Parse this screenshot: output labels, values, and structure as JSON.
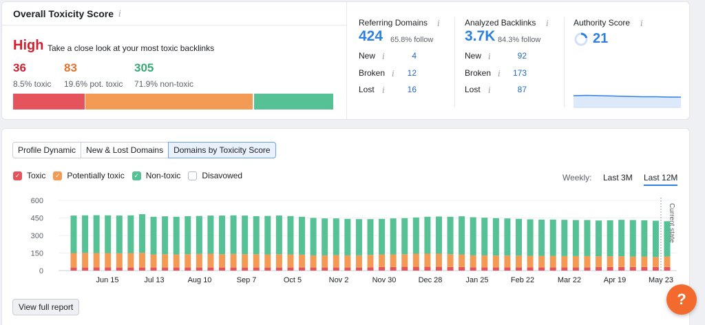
{
  "toxicity": {
    "title": "Overall Toxicity Score",
    "info": "i",
    "level": "High",
    "description": "Take a close look at your most toxic backlinks",
    "counts": [
      {
        "value": "36",
        "label": "8.5% toxic",
        "color": "#d21e2e"
      },
      {
        "value": "83",
        "label": "19.6% pot. toxic",
        "color": "#e8702b"
      },
      {
        "value": "305",
        "label": "71.9% non-toxic",
        "color": "#3aa876"
      }
    ],
    "bar": [
      {
        "name": "toxic",
        "fraction": 0.225,
        "color": "#e5545c"
      },
      {
        "name": "potentially-toxic",
        "fraction": 0.525,
        "color": "#f39a55"
      },
      {
        "name": "non-toxic",
        "fraction": 0.25,
        "color": "#55c194"
      }
    ]
  },
  "referring": {
    "title": "Referring Domains",
    "info": "i",
    "value": "424",
    "follow": "65.8% follow",
    "rows": [
      {
        "label": "New",
        "value": "4"
      },
      {
        "label": "Broken",
        "value": "12"
      },
      {
        "label": "Lost",
        "value": "16"
      }
    ]
  },
  "backlinks": {
    "title": "Analyzed Backlinks",
    "info": "i",
    "value": "3.7K",
    "follow": "84.3% follow",
    "rows": [
      {
        "label": "New",
        "value": "92"
      },
      {
        "label": "Broken",
        "value": "173"
      },
      {
        "label": "Lost",
        "value": "87"
      }
    ]
  },
  "authority": {
    "title": "Authority Score",
    "info": "i",
    "value": "21",
    "progress": 0.21
  },
  "tabs": [
    "Profile Dynamic",
    "New & Lost Domains",
    "Domains by Toxicity Score"
  ],
  "legend": [
    {
      "label": "Toxic",
      "color": "#e5545c",
      "checked": true
    },
    {
      "label": "Potentially toxic",
      "color": "#f39a55",
      "checked": true
    },
    {
      "label": "Non-toxic",
      "color": "#55c194",
      "checked": true
    },
    {
      "label": "Disavowed",
      "color": "#ffffff",
      "checked": false
    }
  ],
  "period": {
    "label": "Weekly:",
    "options": [
      "Last 3M",
      "Last 12M"
    ],
    "selected": "Last 12M"
  },
  "view_report": "View full report",
  "help": "?",
  "chart_data": {
    "type": "bar",
    "stacked": true,
    "yticks": [
      0,
      150,
      300,
      450,
      600
    ],
    "ylim": [
      0,
      600
    ],
    "xticklabels": [
      "Jun 15",
      "Jul 13",
      "Aug 10",
      "Sep 7",
      "Oct 5",
      "Nov 2",
      "Nov 30",
      "Dec 28",
      "Jan 25",
      "Feb 22",
      "Mar 22",
      "Apr 19",
      "May 23"
    ],
    "annotation": "Current state",
    "series": [
      {
        "name": "Toxic",
        "color": "#e5545c",
        "values": [
          26,
          26,
          27,
          27,
          26,
          26,
          26,
          26,
          26,
          26,
          26,
          26,
          26,
          26,
          26,
          26,
          26,
          26,
          26,
          26,
          26,
          26,
          26,
          26,
          26,
          26,
          28,
          30,
          30,
          32,
          32,
          32,
          32,
          30,
          30,
          28,
          28,
          28,
          28,
          28,
          28,
          28,
          28,
          28,
          28,
          28,
          30,
          30,
          30,
          30,
          30,
          30,
          30
        ]
      },
      {
        "name": "Potentially toxic",
        "color": "#f39a55",
        "values": [
          124,
          126,
          123,
          123,
          122,
          124,
          126,
          112,
          114,
          112,
          114,
          116,
          118,
          114,
          116,
          114,
          114,
          112,
          114,
          112,
          110,
          104,
          104,
          106,
          104,
          104,
          106,
          108,
          108,
          108,
          112,
          112,
          112,
          110,
          108,
          102,
          102,
          100,
          100,
          100,
          98,
          98,
          98,
          96,
          96,
          96,
          92,
          92,
          92,
          90,
          90,
          86,
          90
        ]
      },
      {
        "name": "Non-toxic",
        "color": "#55c194",
        "values": [
          320,
          320,
          323,
          322,
          322,
          322,
          330,
          322,
          324,
          322,
          325,
          325,
          326,
          330,
          330,
          330,
          325,
          329,
          330,
          328,
          324,
          320,
          316,
          314,
          312,
          310,
          306,
          304,
          308,
          308,
          310,
          316,
          318,
          320,
          326,
          326,
          322,
          320,
          318,
          314,
          312,
          310,
          310,
          310,
          308,
          308,
          306,
          308,
          312,
          312,
          310,
          310,
          302
        ]
      }
    ]
  }
}
